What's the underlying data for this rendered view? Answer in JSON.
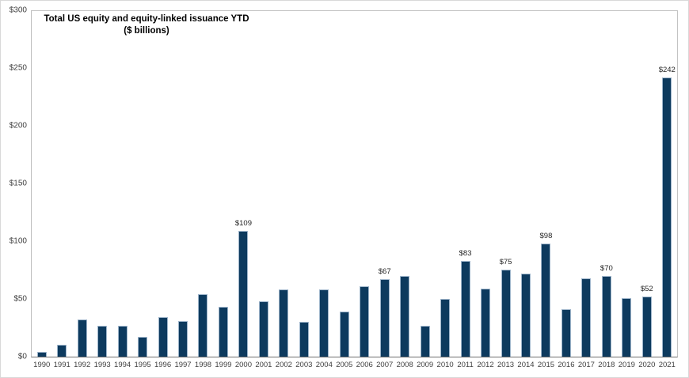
{
  "title": {
    "line1": "Total US equity and equity-linked issuance YTD",
    "line2": "($ billions)"
  },
  "colors": {
    "bar_fill": "#0d3a5e",
    "bar_border": "#9db4ca",
    "axis_line": "#6e6e6e",
    "plot_border": "#c3c3c3"
  },
  "y_axis": {
    "ticks": [
      0,
      50,
      100,
      150,
      200,
      250,
      300
    ],
    "tick_labels": [
      "$0",
      "$50",
      "$100",
      "$150",
      "$200",
      "$250",
      "$300"
    ]
  },
  "chart_data": {
    "type": "bar",
    "title": "Total US equity and equity-linked issuance YTD ($ billions)",
    "categories": [
      "1990",
      "1991",
      "1992",
      "1993",
      "1994",
      "1995",
      "1996",
      "1997",
      "1998",
      "1999",
      "2000",
      "2001",
      "2002",
      "2003",
      "2004",
      "2005",
      "2006",
      "2007",
      "2008",
      "2009",
      "2010",
      "2011",
      "2012",
      "2013",
      "2014",
      "2015",
      "2016",
      "2017",
      "2018",
      "2019",
      "2020",
      "2021"
    ],
    "values": [
      4,
      10,
      32,
      27,
      27,
      17,
      34,
      31,
      54,
      43,
      109,
      48,
      58,
      30,
      58,
      39,
      61,
      67,
      70,
      27,
      50,
      83,
      59,
      75,
      72,
      98,
      41,
      68,
      70,
      51,
      52,
      242
    ],
    "data_labels": {
      "2000": "$109",
      "2007": "$67",
      "2011": "$83",
      "2013": "$75",
      "2015": "$98",
      "2018": "$70",
      "2020": "$52",
      "2021": "$242"
    },
    "xlabel": "",
    "ylabel": "",
    "ylim": [
      0,
      300
    ],
    "grid": false,
    "legend": "none"
  }
}
